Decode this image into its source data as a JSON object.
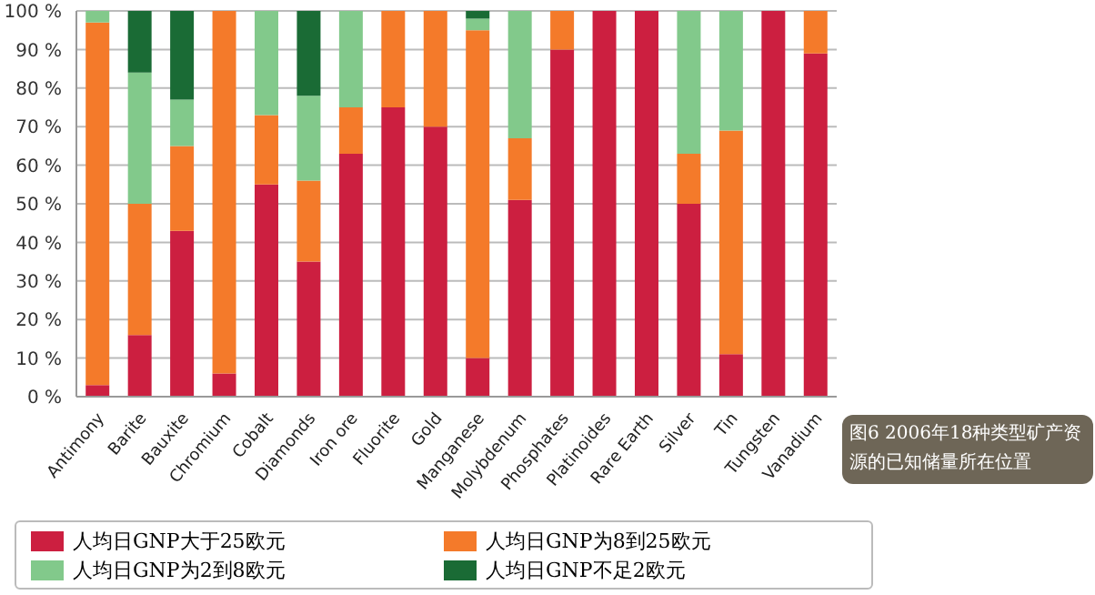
{
  "chart_data": {
    "type": "bar",
    "stacked": true,
    "categories": [
      "Antimony",
      "Barite",
      "Bauxite",
      "Chromium",
      "Cobalt",
      "Diamonds",
      "Iron ore",
      "Fluorite",
      "Gold",
      "Manganese",
      "Molybdenum",
      "Phosphates",
      "Platinoides",
      "Rare Earth",
      "Silver",
      "Tin",
      "Tungsten",
      "Vanadium"
    ],
    "series": [
      {
        "name": "人均日GNP大于25欧元",
        "color": "#cc1f40",
        "values": [
          3,
          16,
          43,
          6,
          55,
          35,
          63,
          75,
          70,
          10,
          51,
          90,
          100,
          100,
          50,
          11,
          100,
          89
        ]
      },
      {
        "name": "人均日GNP为8到25欧元",
        "color": "#f47a2a",
        "values": [
          94,
          34,
          22,
          94,
          18,
          21,
          12,
          25,
          30,
          85,
          16,
          10,
          0,
          0,
          13,
          58,
          0,
          11
        ]
      },
      {
        "name": "人均日GNP为2到8欧元",
        "color": "#82c98b",
        "values": [
          3,
          34,
          12,
          0,
          27,
          22,
          25,
          0,
          0,
          3,
          33,
          0,
          0,
          0,
          37,
          31,
          0,
          0
        ]
      },
      {
        "name": "人均日GNP不足2欧元",
        "color": "#1a6b35",
        "values": [
          0,
          16,
          23,
          0,
          0,
          22,
          0,
          0,
          0,
          2,
          0,
          0,
          0,
          0,
          0,
          0,
          0,
          0
        ]
      }
    ],
    "ylim": [
      0,
      100
    ],
    "yticks": [
      {
        "value": 0,
        "label": "0 %"
      },
      {
        "value": 10,
        "label": "10 %"
      },
      {
        "value": 20,
        "label": "20 %"
      },
      {
        "value": 30,
        "label": "30 %"
      },
      {
        "value": 40,
        "label": "40 %"
      },
      {
        "value": 50,
        "label": "50 %"
      },
      {
        "value": 60,
        "label": "60 %"
      },
      {
        "value": 70,
        "label": "70 %"
      },
      {
        "value": 80,
        "label": "80 %"
      },
      {
        "value": 90,
        "label": "90 %"
      },
      {
        "value": 100,
        "label": "100 %"
      }
    ],
    "grid": "y",
    "legend": "bottom",
    "annotations": [
      "图6 2006年18种类型矿产资源的已知储量所在位置"
    ]
  }
}
